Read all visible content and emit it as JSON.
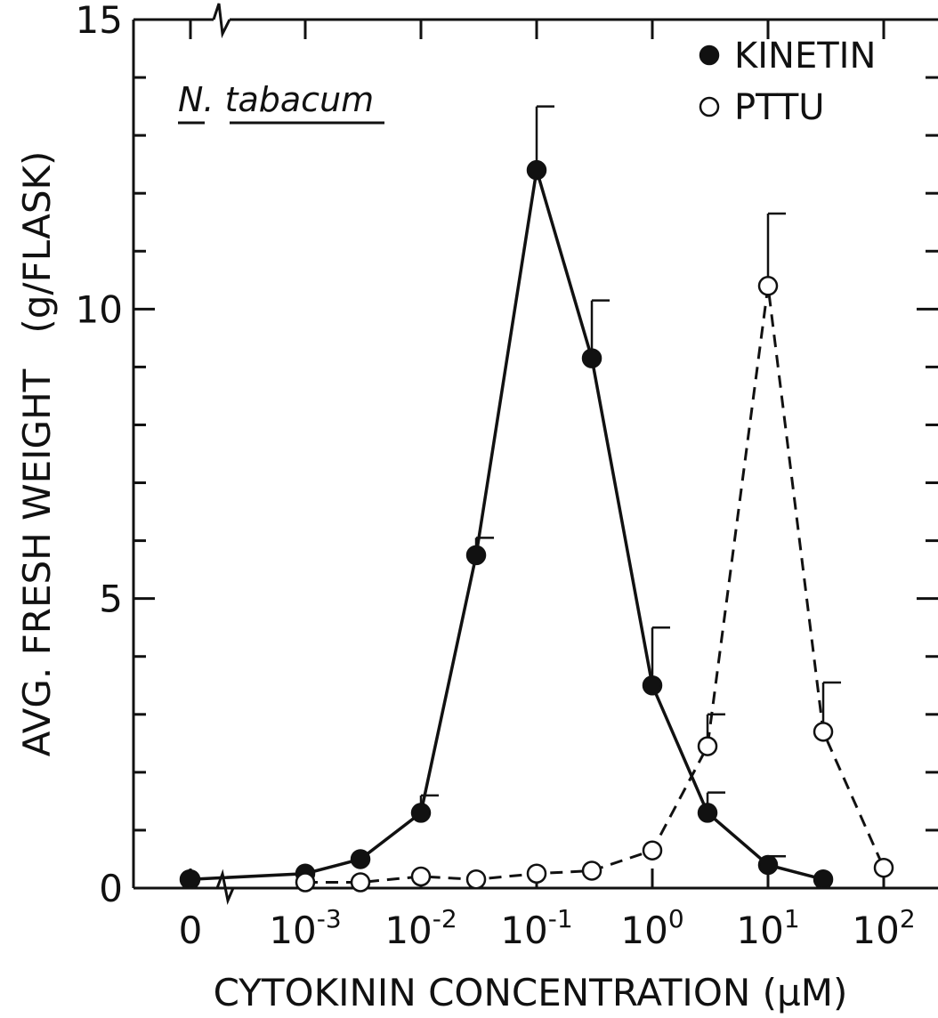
{
  "chart_data": {
    "type": "line",
    "title": "",
    "annotation": "N. tabacum",
    "xlabel": "CYTOKININ CONCENTRATION (µM)",
    "ylabel": "AVG. FRESH WEIGHT   (g/FLASK)",
    "x_scale": "log",
    "x_has_zero_point": true,
    "x_tick_labels": [
      {
        "value": 0,
        "base": "0",
        "exp": ""
      },
      {
        "value": 0.001,
        "base": "10",
        "exp": "-3"
      },
      {
        "value": 0.01,
        "base": "10",
        "exp": "-2"
      },
      {
        "value": 0.1,
        "base": "10",
        "exp": "-1"
      },
      {
        "value": 1,
        "base": "10",
        "exp": "0"
      },
      {
        "value": 10,
        "base": "10",
        "exp": "1"
      },
      {
        "value": 100,
        "base": "10",
        "exp": "2"
      }
    ],
    "ylim": [
      0,
      15
    ],
    "y_tick_labels": [
      "0",
      "5",
      "10",
      "15"
    ],
    "y_major_ticks": [
      0,
      5,
      10,
      15
    ],
    "y_minor_ticks": [
      1,
      2,
      3,
      4,
      6,
      7,
      8,
      9,
      11,
      12,
      13,
      14
    ],
    "legend_position": "top-right",
    "grid": false,
    "series": [
      {
        "name": "KINETIN",
        "marker": "filled-circle",
        "line": "solid",
        "color": "#111111",
        "points": [
          {
            "x": 0,
            "y": 0.15
          },
          {
            "x": 0.0001,
            "y": 0.15
          },
          {
            "x": 0.001,
            "y": 0.25
          },
          {
            "x": 0.003,
            "y": 0.5
          },
          {
            "x": 0.01,
            "y": 1.3,
            "err": 0.3
          },
          {
            "x": 0.03,
            "y": 5.75,
            "err": 0.3
          },
          {
            "x": 0.1,
            "y": 12.4,
            "err": 1.1
          },
          {
            "x": 0.3,
            "y": 9.15,
            "err": 1.0
          },
          {
            "x": 1,
            "y": 3.5,
            "err": 1.0
          },
          {
            "x": 3,
            "y": 1.3,
            "err": 0.35
          },
          {
            "x": 10,
            "y": 0.4,
            "err": 0.15
          },
          {
            "x": 30,
            "y": 0.15
          }
        ]
      },
      {
        "name": "PTTU",
        "marker": "open-circle",
        "line": "dashed",
        "color": "#111111",
        "points": [
          {
            "x": 0.001,
            "y": 0.1
          },
          {
            "x": 0.003,
            "y": 0.1
          },
          {
            "x": 0.01,
            "y": 0.2
          },
          {
            "x": 0.03,
            "y": 0.15
          },
          {
            "x": 0.1,
            "y": 0.25
          },
          {
            "x": 0.3,
            "y": 0.3
          },
          {
            "x": 1,
            "y": 0.65
          },
          {
            "x": 3,
            "y": 2.45,
            "err": 0.55
          },
          {
            "x": 10,
            "y": 10.4,
            "err": 1.25
          },
          {
            "x": 30,
            "y": 2.7,
            "err": 0.85
          },
          {
            "x": 100,
            "y": 0.35
          }
        ]
      }
    ]
  }
}
